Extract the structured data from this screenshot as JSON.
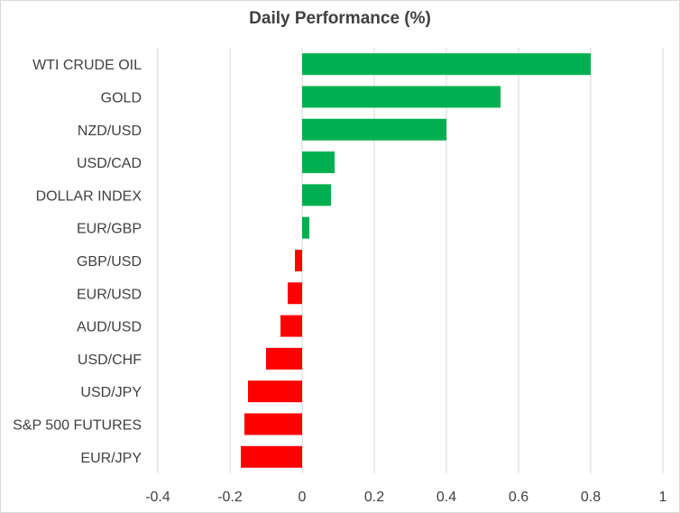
{
  "chart_data": {
    "type": "bar",
    "orientation": "horizontal",
    "title": "Daily Performance (%)",
    "xlabel": "",
    "ylabel": "",
    "categories": [
      "WTI CRUDE OIL",
      "GOLD",
      "NZD/USD",
      "USD/CAD",
      "DOLLAR INDEX",
      "EUR/GBP",
      "GBP/USD",
      "EUR/USD",
      "AUD/USD",
      "USD/CHF",
      "USD/JPY",
      "S&P 500 FUTURES",
      "EUR/JPY"
    ],
    "values": [
      0.8,
      0.55,
      0.4,
      0.09,
      0.08,
      0.02,
      -0.02,
      -0.04,
      -0.06,
      -0.1,
      -0.15,
      -0.16,
      -0.17
    ],
    "xlim": [
      -0.4,
      1
    ],
    "ticks": [
      -0.4,
      -0.2,
      0,
      0.2,
      0.4,
      0.6,
      0.8,
      1
    ],
    "tick_labels": [
      "-0.4",
      "-0.2",
      "0",
      "0.2",
      "0.4",
      "0.6",
      "0.8",
      "1"
    ],
    "grid": "vertical",
    "legend": "none",
    "colors": {
      "positive": "#00b050",
      "negative": "#ff0000",
      "grid": "#d9d9d9",
      "text": "#404040"
    }
  }
}
